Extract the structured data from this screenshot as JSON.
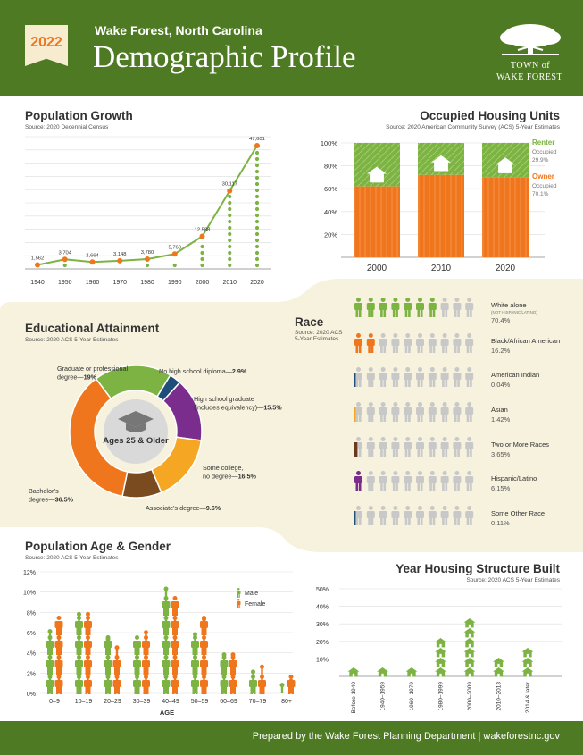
{
  "header": {
    "year": "2022",
    "location": "Wake Forest, North Carolina",
    "title": "Demographic Profile",
    "logo_line1": "TOWN of",
    "logo_line2": "WAKE FOREST",
    "logo_icon": "oak-tree-icon"
  },
  "footer": {
    "text": "Prepared by the Wake Forest Planning Department | wakeforestnc.gov"
  },
  "colors": {
    "green": "#7cb342",
    "orange": "#f0761d",
    "dark_green": "#4f7a24",
    "cream": "#f6f2de",
    "gray": "#c8c8c8"
  },
  "chart_data": [
    {
      "type": "line",
      "title": "Population Growth",
      "subtitle": "Source: 2020 Decennial Census",
      "x": [
        "1940",
        "1950",
        "1960",
        "1970",
        "1980",
        "1990",
        "2000",
        "2010",
        "2020"
      ],
      "values": [
        1562,
        3704,
        2664,
        3148,
        3780,
        5769,
        12588,
        30117,
        47601
      ],
      "value_labels": [
        "1,562",
        "3,704",
        "2,664",
        "3,148",
        "3,780",
        "5,769",
        "12,588",
        "30,117",
        "47,601"
      ],
      "ylim": [
        0,
        50000
      ],
      "grid": true
    },
    {
      "type": "bar",
      "stacked": true,
      "title": "Occupied Housing Units",
      "subtitle": "Source: 2020 American Community Survey (ACS) 5-Year Estimates",
      "categories": [
        "2000",
        "2010",
        "2020"
      ],
      "series": [
        {
          "name": "Owner",
          "values": [
            62,
            72,
            70.1
          ],
          "color": "#f0761d"
        },
        {
          "name": "Renter",
          "values": [
            38,
            28,
            29.9
          ],
          "color": "#7cb342"
        }
      ],
      "y_ticks": [
        "100%",
        "80%",
        "60%",
        "40%",
        "20%"
      ],
      "ylim": [
        0,
        100
      ],
      "legend": [
        {
          "name": "Renter",
          "sub": "Occupied",
          "value": "29.9%"
        },
        {
          "name": "Owner",
          "sub": "Occupied",
          "value": "70.1%"
        }
      ]
    },
    {
      "type": "pie",
      "donut": true,
      "title": "Educational Attainment",
      "subtitle": "Source: 2020 ACS 5-Year Estimates",
      "center_label": "Ages 25 & Older",
      "center_icon": "graduation-cap-icon",
      "slices": [
        {
          "label": "No high school diploma",
          "value": 2.9,
          "value_label": "2.9%",
          "color": "#1f4e79"
        },
        {
          "label": "High school graduate",
          "note": "(includes equivalency)",
          "value": 15.5,
          "value_label": "15.5%",
          "color": "#7b2d8e"
        },
        {
          "label": "Some college, no degree",
          "value": 16.5,
          "value_label": "16.5%",
          "color": "#f5a623"
        },
        {
          "label": "Associate's degree",
          "value": 9.6,
          "value_label": "9.6%",
          "color": "#7a4b1e"
        },
        {
          "label": "Bachelor's degree",
          "value": 36.5,
          "value_label": "36.5%",
          "color": "#f0761d"
        },
        {
          "label": "Graduate or professional degree",
          "value": 19,
          "value_label": "19%",
          "color": "#7cb342"
        }
      ]
    },
    {
      "type": "bar",
      "title": "Race",
      "subtitle": "Source: 2020 ACS 5-Year Estimates",
      "categories": [
        "White alone",
        "Black/African American",
        "American Indian",
        "Asian",
        "Two or More Races",
        "Hispanic/Latino",
        "Some Other Race"
      ],
      "category_notes": [
        "(NOT HISPANIC/LATINO)",
        "",
        "",
        "",
        "",
        "",
        ""
      ],
      "values": [
        70.4,
        16.2,
        0.04,
        1.42,
        3.65,
        6.15,
        0.11
      ],
      "value_labels": [
        "70.4%",
        "16.2%",
        "0.04%",
        "1.42%",
        "3.65%",
        "6.15%",
        "0.11%"
      ],
      "colors": [
        "#7cb342",
        "#f0761d",
        "#1f4e79",
        "#f5a623",
        "#6b3a1e",
        "#7b2d8e",
        "#1f4e79"
      ],
      "figures_per_row": 10
    },
    {
      "type": "bar",
      "title": "Population Age & Gender",
      "subtitle": "Source: 2020 ACS 5-Year Estimates",
      "categories": [
        "0–9",
        "10–19",
        "20–29",
        "30–39",
        "40–49",
        "50–59",
        "60–69",
        "70–79",
        "80+"
      ],
      "xlabel": "AGE",
      "y_ticks": [
        "12%",
        "10%",
        "8%",
        "6%",
        "4%",
        "2%",
        "0%"
      ],
      "ylim": [
        0,
        12
      ],
      "series": [
        {
          "name": "Male",
          "values": [
            6.3,
            8.0,
            5.5,
            5.0,
            10.5,
            6.0,
            4.0,
            2.3,
            1.0
          ],
          "color": "#7cb342"
        },
        {
          "name": "Female",
          "values": [
            7.0,
            8.0,
            4.7,
            6.2,
            9.0,
            7.5,
            4.0,
            2.8,
            1.4
          ],
          "color": "#f0761d"
        }
      ]
    },
    {
      "type": "bar",
      "title": "Year Housing Structure Built",
      "subtitle": "Source: 2020 ACS 5-Year Estimates",
      "categories": [
        "Before 1940",
        "1940–1959",
        "1960–1979",
        "1980–1999",
        "2000–2009",
        "2010–2013",
        "2014 & later"
      ],
      "values": [
        2.5,
        2.5,
        5,
        23.5,
        36,
        12,
        15
      ],
      "y_ticks": [
        "50%",
        "40%",
        "30%",
        "20%",
        "10%"
      ],
      "ylim": [
        0,
        50
      ],
      "icon": "house-icon"
    }
  ]
}
